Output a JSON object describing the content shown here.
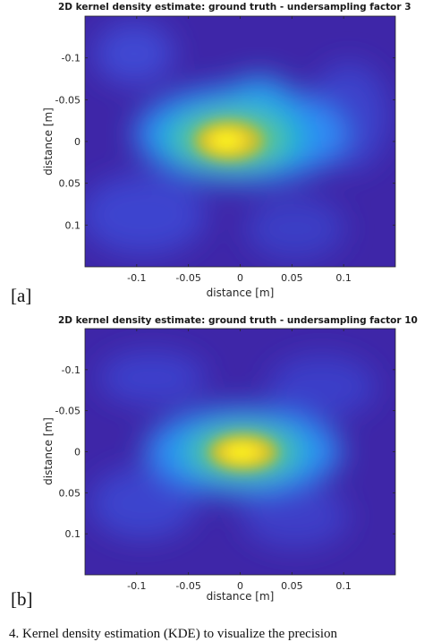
{
  "chart_data": [
    {
      "type": "heatmap",
      "title": "2D kernel density estimate: ground truth - undersampling factor 3",
      "xlabel": "distance [m]",
      "ylabel": "distance [m]",
      "xlim": [
        -0.15,
        0.15
      ],
      "ylim": [
        -0.15,
        0.15
      ],
      "y_reversed": true,
      "xticks": [
        -0.1,
        -0.05,
        0,
        0.05,
        0.1
      ],
      "xtick_labels": [
        "-0.1",
        "-0.05",
        "0",
        "0.05",
        "0.1"
      ],
      "yticks": [
        -0.1,
        -0.05,
        0,
        0.05,
        0.1
      ],
      "ytick_labels": [
        "-0.1",
        "-0.05",
        "0",
        "0.05",
        "0.1"
      ],
      "colormap": "parula",
      "peak": {
        "x": -0.01,
        "y": 0.0
      },
      "panel_label": "[a]"
    },
    {
      "type": "heatmap",
      "title": "2D kernel density estimate: ground truth - undersampling factor 10",
      "xlabel": "distance [m]",
      "ylabel": "distance [m]",
      "xlim": [
        -0.15,
        0.15
      ],
      "ylim": [
        -0.15,
        0.15
      ],
      "y_reversed": true,
      "xticks": [
        -0.1,
        -0.05,
        0,
        0.05,
        0.1
      ],
      "xtick_labels": [
        "-0.1",
        "-0.05",
        "0",
        "0.05",
        "0.1"
      ],
      "yticks": [
        -0.1,
        -0.05,
        0,
        0.05,
        0.1
      ],
      "ytick_labels": [
        "-0.1",
        "-0.05",
        "0",
        "0.05",
        "0.1"
      ],
      "colormap": "parula",
      "peak": {
        "x": 0.005,
        "y": 0.0
      },
      "panel_label": "[b]"
    }
  ],
  "caption": "4.  Kernel density estimation (KDE) to visualize the precision"
}
